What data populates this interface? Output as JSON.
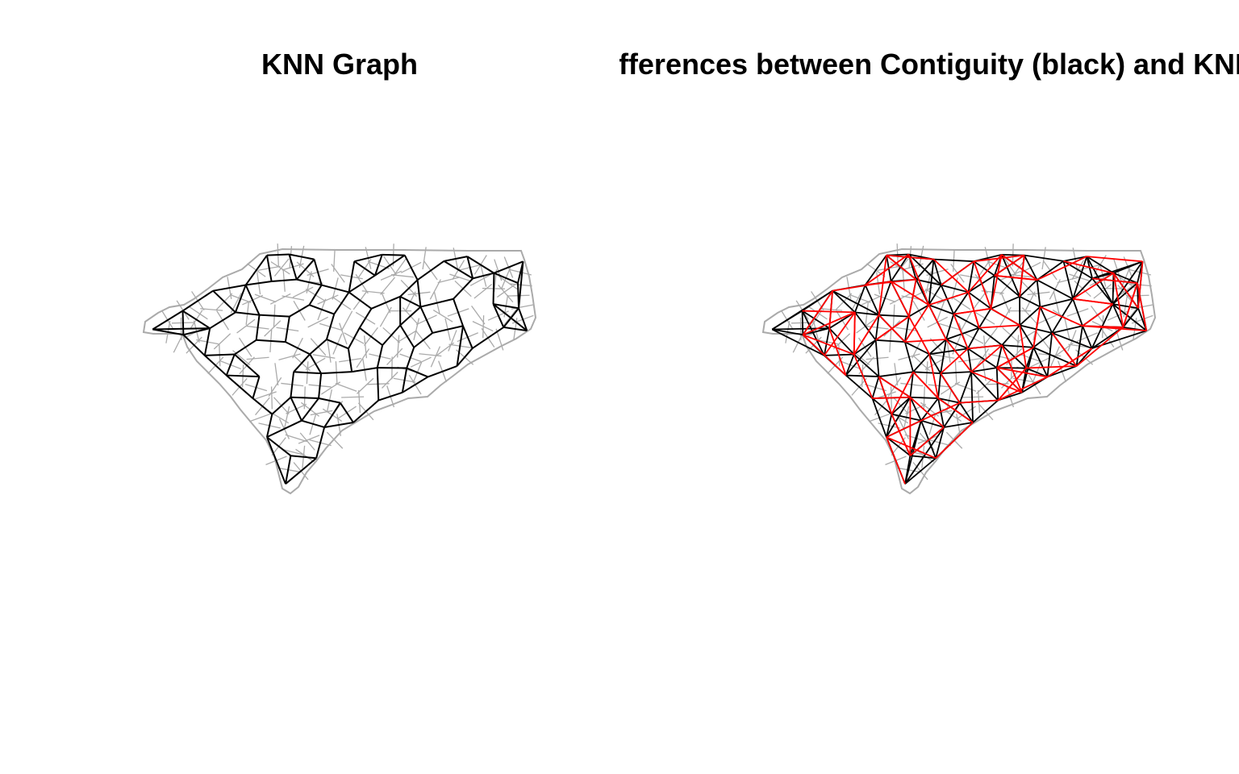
{
  "panels": [
    {
      "title": "KNN Graph",
      "map_color": "#aaaaaa",
      "edge_color": "#000000"
    },
    {
      "title": "Differences between Contiguity (black) and KNN (red)",
      "map_color": "#aaaaaa",
      "contiguity_color": "#000000",
      "knn_color": "#ff0000"
    }
  ]
}
